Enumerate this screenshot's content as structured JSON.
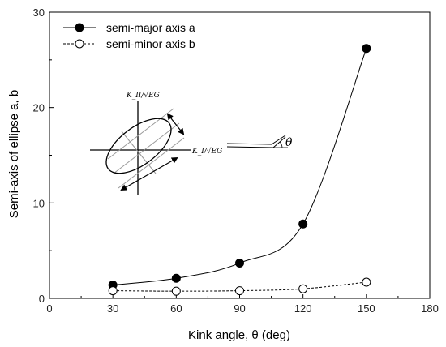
{
  "chart_data": {
    "type": "line",
    "xlabel": "Kink angle, θ (deg)",
    "ylabel": "Semi-axis of ellipse a, b",
    "xlim": [
      0,
      180
    ],
    "ylim": [
      0,
      30
    ],
    "xticks": [
      0,
      30,
      60,
      90,
      120,
      150,
      180
    ],
    "yticks": [
      0,
      10,
      20,
      30
    ],
    "legend_position": "top-left",
    "series": [
      {
        "name": "semi-major axis a",
        "marker": "filled-circle",
        "line_style": "solid",
        "x": [
          30,
          60,
          90,
          120,
          150
        ],
        "y": [
          1.4,
          2.1,
          3.7,
          7.8,
          26.2
        ]
      },
      {
        "name": "semi-minor axis b",
        "marker": "open-circle",
        "line_style": "dashed",
        "x": [
          30,
          60,
          90,
          120,
          150
        ],
        "y": [
          0.8,
          0.75,
          0.8,
          1.0,
          1.7
        ]
      }
    ],
    "inset": {
      "label_vertical": "K_II/√EG",
      "label_horizontal": "K_I/√EG",
      "angle_symbol": "θ"
    }
  }
}
